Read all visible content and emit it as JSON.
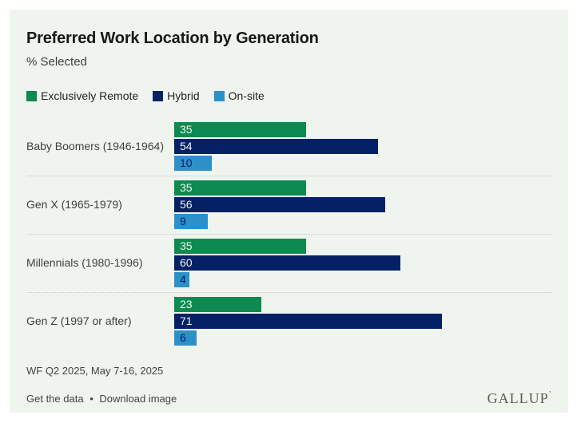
{
  "header": {
    "title": "Preferred Work Location by Generation",
    "subtitle": "% Selected"
  },
  "chart_data": {
    "type": "bar",
    "orientation": "horizontal",
    "title": "Preferred Work Location by Generation",
    "subtitle": "% Selected",
    "categories": [
      "Baby Boomers (1946-1964)",
      "Gen X (1965-1979)",
      "Millennials (1980-1996)",
      "Gen Z (1997 or after)"
    ],
    "series": [
      {
        "name": "Exclusively Remote",
        "color": "#0c8a50",
        "value_label_color": "#f2f7f1",
        "values": [
          35,
          35,
          35,
          23
        ]
      },
      {
        "name": "Hybrid",
        "color": "#052166",
        "value_label_color": "#f2f7f1",
        "values": [
          54,
          56,
          60,
          71
        ]
      },
      {
        "name": "On-site",
        "color": "#2e90c8",
        "value_label_color": "#052166",
        "values": [
          10,
          9,
          4,
          6
        ]
      }
    ],
    "xlim": [
      0,
      100
    ],
    "grid": false,
    "legend_position": "top",
    "value_labels": "inside-start"
  },
  "colors": {
    "panel_background": "#eff5ee",
    "page_background": "#ffffff",
    "separator": "#c6cac4"
  },
  "footer": {
    "source": "WF Q2 2025, May 7-16, 2025",
    "links": [
      "Get the data",
      "Download image"
    ],
    "separator": "•",
    "brand": "GALLUP",
    "brand_mark": "’"
  }
}
